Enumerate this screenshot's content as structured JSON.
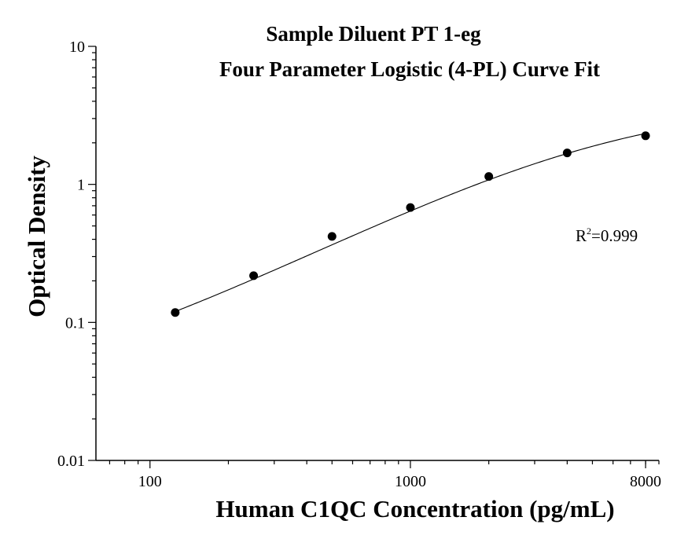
{
  "chart_data": {
    "type": "scatter",
    "title": [
      "Sample Diluent PT 1-eg",
      "Four Parameter Logistic (4-PL) Curve Fit"
    ],
    "xlabel": "Human C1QC Concentration (pg/mL)",
    "ylabel": "Optical Density",
    "x_scale": "log",
    "y_scale": "log",
    "xlim": [
      62,
      9000
    ],
    "ylim": [
      0.01,
      10
    ],
    "x_ticks": [
      100,
      1000,
      8000
    ],
    "x_tick_labels": [
      "100",
      "1000",
      "8000"
    ],
    "y_ticks": [
      0.01,
      0.1,
      1,
      10
    ],
    "y_tick_labels": [
      "0.01",
      "0.1",
      "1",
      "10"
    ],
    "grid": false,
    "annotation": {
      "r_label": "R",
      "r_sup": "2",
      "r_value": "=0.999"
    },
    "series": [
      {
        "x": [
          125,
          250,
          500,
          1000,
          2000,
          4000,
          8000
        ],
        "y": [
          0.118,
          0.218,
          0.42,
          0.68,
          1.14,
          1.69,
          2.25
        ]
      }
    ],
    "fit": {
      "model": "4PL",
      "A": 0.0267,
      "B": 0.976,
      "C": 5700,
      "D": 4.0
    }
  }
}
